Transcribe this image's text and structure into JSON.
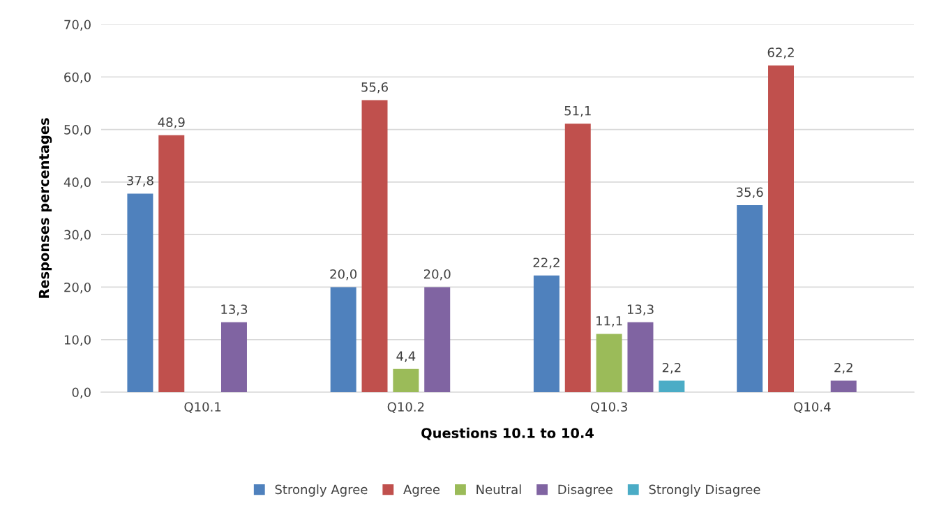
{
  "chart_data": {
    "type": "bar",
    "categories": [
      "Q10.1",
      "Q10.2",
      "Q10.3",
      "Q10.4"
    ],
    "xlabel": "Questions 10.1 to 10.4",
    "ylabel": "Responses percentages",
    "ylim": [
      0,
      70
    ],
    "yticks": [
      {
        "value": 0,
        "label": "0,0"
      },
      {
        "value": 10,
        "label": "10,0"
      },
      {
        "value": 20,
        "label": "20,0"
      },
      {
        "value": 30,
        "label": "30,0"
      },
      {
        "value": 40,
        "label": "40,0"
      },
      {
        "value": 50,
        "label": "50,0"
      },
      {
        "value": 60,
        "label": "60,0"
      },
      {
        "value": 70,
        "label": "70,0"
      }
    ],
    "grid": "y",
    "legend": "bottom",
    "series": [
      {
        "name": "Strongly Agree",
        "color": "#4f81bd",
        "values": [
          37.8,
          20.0,
          22.2,
          35.6
        ],
        "value_labels": [
          "37,8",
          "20,0",
          "22,2",
          "35,6"
        ]
      },
      {
        "name": "Agree",
        "color": "#c0504d",
        "values": [
          48.9,
          55.6,
          51.1,
          62.2
        ],
        "value_labels": [
          "48,9",
          "55,6",
          "51,1",
          "62,2"
        ]
      },
      {
        "name": "Neutral",
        "color": "#9bbb59",
        "values": [
          null,
          4.4,
          11.1,
          null
        ],
        "value_labels": [
          null,
          "4,4",
          "11,1",
          null
        ]
      },
      {
        "name": "Disagree",
        "color": "#8064a2",
        "values": [
          13.3,
          20.0,
          13.3,
          2.2
        ],
        "value_labels": [
          "13,3",
          "20,0",
          "13,3",
          "2,2"
        ]
      },
      {
        "name": "Strongly Disagree",
        "color": "#4bacc6",
        "values": [
          null,
          null,
          2.2,
          null
        ],
        "value_labels": [
          null,
          null,
          "2,2",
          null
        ]
      }
    ]
  }
}
